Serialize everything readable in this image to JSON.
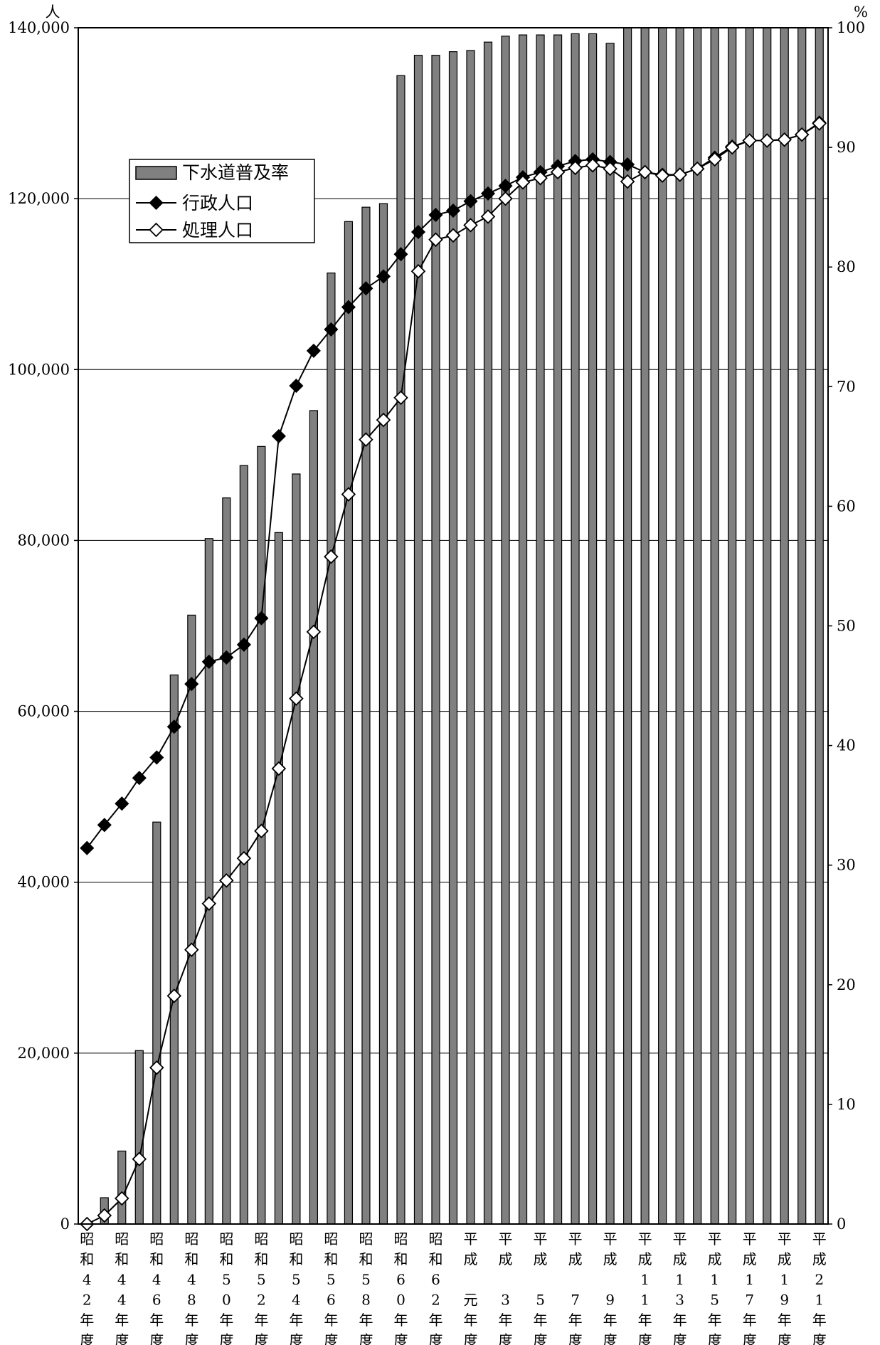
{
  "chart_data": {
    "type": "bar+line",
    "title": "",
    "left_axis": {
      "unit": "人",
      "ylim": [
        0,
        140000
      ],
      "ticks": [
        0,
        20000,
        40000,
        60000,
        80000,
        100000,
        120000,
        140000
      ],
      "tick_labels": [
        "0",
        "20,000",
        "40,000",
        "60,000",
        "80,000",
        "100,000",
        "120,000",
        "140,000"
      ]
    },
    "right_axis": {
      "unit": "%",
      "ylim": [
        0,
        100
      ],
      "ticks": [
        0,
        10,
        20,
        30,
        40,
        50,
        60,
        70,
        80,
        90,
        100
      ],
      "tick_labels": [
        "0",
        "10",
        "20",
        "30",
        "40",
        "50",
        "60",
        "70",
        "80",
        "90",
        "100"
      ]
    },
    "grid": true,
    "legend_placement": "upper-left",
    "categories": [
      "昭和42年度",
      "昭和43年度",
      "昭和44年度",
      "昭和45年度",
      "昭和46年度",
      "昭和47年度",
      "昭和48年度",
      "昭和49年度",
      "昭和50年度",
      "昭和51年度",
      "昭和52年度",
      "昭和53年度",
      "昭和54年度",
      "昭和55年度",
      "昭和56年度",
      "昭和57年度",
      "昭和58年度",
      "昭和59年度",
      "昭和60年度",
      "昭和61年度",
      "昭和62年度",
      "昭和63年度",
      "平成元年度",
      "平成2年度",
      "平成3年度",
      "平成4年度",
      "平成5年度",
      "平成6年度",
      "平成7年度",
      "平成8年度",
      "平成9年度",
      "平成10年度",
      "平成11年度",
      "平成12年度",
      "平成13年度",
      "平成14年度",
      "平成15年度",
      "平成16年度",
      "平成17年度",
      "平成18年度",
      "平成19年度",
      "平成20年度",
      "平成21年度"
    ],
    "category_labels": [
      {
        "index": 0,
        "text": "昭和42年度",
        "glyphs": [
          "昭",
          "和",
          "4",
          "2",
          "年",
          "度"
        ]
      },
      {
        "index": 2,
        "text": "昭和44年度",
        "glyphs": [
          "昭",
          "和",
          "4",
          "4",
          "年",
          "度"
        ]
      },
      {
        "index": 4,
        "text": "昭和46年度",
        "glyphs": [
          "昭",
          "和",
          "4",
          "6",
          "年",
          "度"
        ]
      },
      {
        "index": 6,
        "text": "昭和48年度",
        "glyphs": [
          "昭",
          "和",
          "4",
          "8",
          "年",
          "度"
        ]
      },
      {
        "index": 8,
        "text": "昭和50年度",
        "glyphs": [
          "昭",
          "和",
          "5",
          "0",
          "年",
          "度"
        ]
      },
      {
        "index": 10,
        "text": "昭和52年度",
        "glyphs": [
          "昭",
          "和",
          "5",
          "2",
          "年",
          "度"
        ]
      },
      {
        "index": 12,
        "text": "昭和54年度",
        "glyphs": [
          "昭",
          "和",
          "5",
          "4",
          "年",
          "度"
        ]
      },
      {
        "index": 14,
        "text": "昭和56年度",
        "glyphs": [
          "昭",
          "和",
          "5",
          "6",
          "年",
          "度"
        ]
      },
      {
        "index": 16,
        "text": "昭和58年度",
        "glyphs": [
          "昭",
          "和",
          "5",
          "8",
          "年",
          "度"
        ]
      },
      {
        "index": 18,
        "text": "昭和60年度",
        "glyphs": [
          "昭",
          "和",
          "6",
          "0",
          "年",
          "度"
        ]
      },
      {
        "index": 20,
        "text": "昭和62年度",
        "glyphs": [
          "昭",
          "和",
          "6",
          "2",
          "年",
          "度"
        ]
      },
      {
        "index": 22,
        "text": "平成元年度",
        "glyphs": [
          "平",
          "成",
          "",
          "元",
          "年",
          "度"
        ]
      },
      {
        "index": 24,
        "text": "平成3年度",
        "glyphs": [
          "平",
          "成",
          "",
          "3",
          "年",
          "度"
        ]
      },
      {
        "index": 26,
        "text": "平成5年度",
        "glyphs": [
          "平",
          "成",
          "",
          "5",
          "年",
          "度"
        ]
      },
      {
        "index": 28,
        "text": "平成7年度",
        "glyphs": [
          "平",
          "成",
          "",
          "7",
          "年",
          "度"
        ]
      },
      {
        "index": 30,
        "text": "平成9年度",
        "glyphs": [
          "平",
          "成",
          "",
          "9",
          "年",
          "度"
        ]
      },
      {
        "index": 32,
        "text": "平成11年度",
        "glyphs": [
          "平",
          "成",
          "1",
          "1",
          "年",
          "度"
        ]
      },
      {
        "index": 34,
        "text": "平成13年度",
        "glyphs": [
          "平",
          "成",
          "1",
          "3",
          "年",
          "度"
        ]
      },
      {
        "index": 36,
        "text": "平成15年度",
        "glyphs": [
          "平",
          "成",
          "1",
          "5",
          "年",
          "度"
        ]
      },
      {
        "index": 38,
        "text": "平成17年度",
        "glyphs": [
          "平",
          "成",
          "1",
          "7",
          "年",
          "度"
        ]
      },
      {
        "index": 40,
        "text": "平成19年度",
        "glyphs": [
          "平",
          "成",
          "1",
          "9",
          "年",
          "度"
        ]
      },
      {
        "index": 42,
        "text": "平成21年度",
        "glyphs": [
          "平",
          "成",
          "2",
          "1",
          "年",
          "度"
        ]
      }
    ],
    "series": [
      {
        "name": "下水道普及率",
        "type": "bar",
        "axis": "right",
        "unit": "%",
        "color": "#808080",
        "values": [
          0,
          2.2,
          6.1,
          14.5,
          33.6,
          45.9,
          50.9,
          57.3,
          60.7,
          63.4,
          65.0,
          57.8,
          62.7,
          68.0,
          79.5,
          83.8,
          85.0,
          85.3,
          96.0,
          97.7,
          97.7,
          98.0,
          98.1,
          98.8,
          99.3,
          99.4,
          99.4,
          99.4,
          99.5,
          99.5,
          98.7,
          100,
          100,
          100,
          100,
          100,
          100,
          100,
          100,
          100,
          100,
          100,
          100
        ]
      },
      {
        "name": "行政人口",
        "type": "line",
        "axis": "left",
        "unit": "人",
        "marker": "filled-diamond",
        "color": "#000000",
        "values": [
          44000,
          46700,
          49200,
          52200,
          54600,
          58200,
          63200,
          65800,
          66300,
          67800,
          70900,
          92200,
          98100,
          102200,
          104700,
          107300,
          109500,
          110900,
          113500,
          116100,
          118100,
          118600,
          119700,
          120600,
          121500,
          122500,
          123100,
          123800,
          124400,
          124600,
          124300,
          124000,
          123100,
          122800,
          122800,
          123500,
          124800,
          126100,
          126800,
          126800,
          126900,
          127500,
          128900
        ]
      },
      {
        "name": "処理人口",
        "type": "line",
        "axis": "left",
        "unit": "人",
        "marker": "open-diamond",
        "color": "#000000",
        "values": [
          0,
          1000,
          3000,
          7600,
          18300,
          26700,
          32100,
          37500,
          40200,
          42800,
          46000,
          53300,
          61500,
          69300,
          78100,
          85400,
          91800,
          94100,
          96700,
          111500,
          115200,
          115700,
          116900,
          117900,
          120000,
          121900,
          122400,
          123100,
          123600,
          123900,
          123500,
          122000,
          123100,
          122700,
          122800,
          123500,
          124600,
          126000,
          126800,
          126800,
          126900,
          127500,
          128800
        ]
      }
    ]
  }
}
